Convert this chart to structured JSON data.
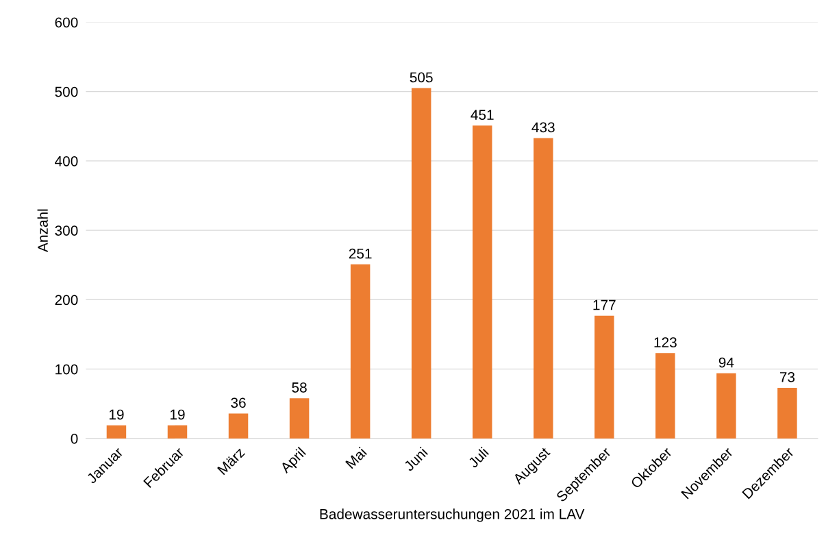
{
  "chart_data": {
    "type": "bar",
    "xlabel": "Badewasseruntersuchungen 2021 im LAV",
    "ylabel": "Anzahl",
    "categories": [
      "Januar",
      "Februar",
      "März",
      "April",
      "Mai",
      "Juni",
      "Juli",
      "August",
      "September",
      "Oktober",
      "November",
      "Dezember"
    ],
    "values": [
      19,
      19,
      36,
      58,
      251,
      505,
      451,
      433,
      177,
      123,
      94,
      73
    ],
    "color": "#ed7d31",
    "ylim": [
      0,
      600
    ],
    "yticks": [
      0,
      100,
      200,
      300,
      400,
      500,
      600
    ],
    "grid": "y",
    "data_labels": true,
    "legend": false
  }
}
